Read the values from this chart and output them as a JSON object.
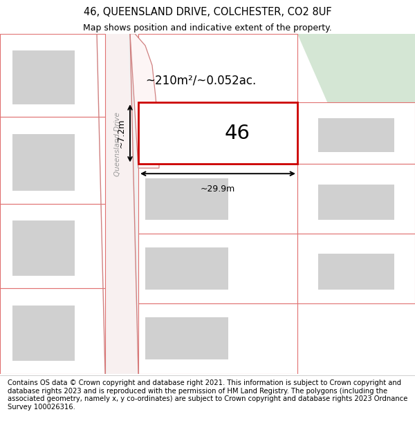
{
  "title_line1": "46, QUEENSLAND DRIVE, COLCHESTER, CO2 8UF",
  "title_line2": "Map shows position and indicative extent of the property.",
  "footer_text": "Contains OS data © Crown copyright and database right 2021. This information is subject to Crown copyright and database rights 2023 and is reproduced with the permission of HM Land Registry. The polygons (including the associated geometry, namely x, y co-ordinates) are subject to Crown copyright and database rights 2023 Ordnance Survey 100026316.",
  "area_text": "~210m²/~0.052ac.",
  "width_text": "~29.9m",
  "height_text": "~7.2m",
  "number_text": "46",
  "map_bg": "#ffffff",
  "plot_outline_color": "#cc0000",
  "neighbor_outline_color": "#e07070",
  "building_fill": "#d0d0d0",
  "road_line_color": "#d08080",
  "green_area_color": "#d4e6d4",
  "gray_bg_left": "#f0f0f0",
  "title_fontsize": 10.5,
  "subtitle_fontsize": 9,
  "footer_fontsize": 7.2
}
